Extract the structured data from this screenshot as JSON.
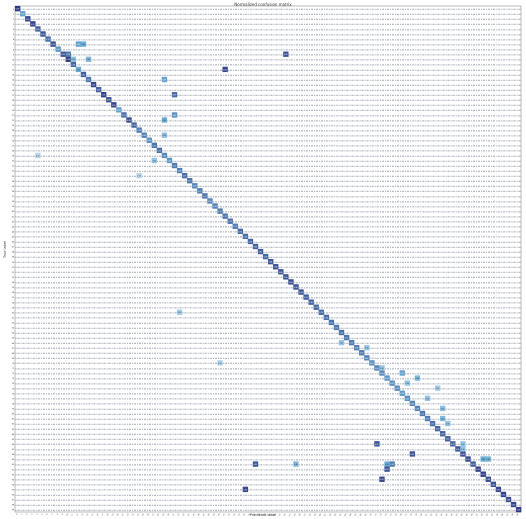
{
  "chart_data": {
    "type": "heatmap",
    "title": "Normalized confusion matrix",
    "xlabel": "Predicted label",
    "ylabel": "True label",
    "n_classes": 100,
    "cell_text": "0.00",
    "xlim": [
      0,
      99
    ],
    "ylim": [
      0,
      99
    ],
    "value_range": [
      0,
      1
    ],
    "colormap": "Blues",
    "colors": {
      "low": "#dbe9f6",
      "mid": "#6aaed6",
      "high": "#2a2f7a",
      "grid_text": "#4a5a72"
    },
    "diagonal": [
      0.95,
      0.55,
      0.9,
      0.92,
      0.8,
      0.85,
      0.75,
      0.88,
      0.6,
      0.85,
      0.95,
      0.78,
      0.5,
      0.82,
      0.72,
      0.9,
      0.8,
      0.93,
      0.85,
      0.9,
      0.55,
      0.75,
      0.88,
      0.78,
      0.7,
      0.68,
      0.62,
      0.72,
      0.75,
      0.65,
      0.6,
      0.7,
      0.68,
      0.75,
      0.72,
      0.66,
      0.7,
      0.74,
      0.66,
      0.68,
      0.7,
      0.72,
      0.74,
      0.7,
      0.76,
      0.74,
      0.78,
      0.8,
      0.82,
      0.78,
      0.84,
      0.86,
      0.84,
      0.86,
      0.88,
      0.86,
      0.84,
      0.82,
      0.8,
      0.78,
      0.76,
      0.74,
      0.72,
      0.7,
      0.74,
      0.72,
      0.7,
      0.68,
      0.7,
      0.66,
      0.62,
      0.66,
      0.64,
      0.6,
      0.62,
      0.64,
      0.58,
      0.62,
      0.66,
      0.68,
      0.72,
      0.7,
      0.75,
      0.78,
      0.8,
      0.82,
      0.78,
      0.85,
      0.88,
      0.9,
      0.82,
      0.92,
      0.95,
      0.88,
      0.85,
      0.9,
      0.92,
      0.88,
      0.9,
      0.95
    ],
    "off_diagonal": [
      {
        "row": 7,
        "col": 12,
        "value": 0.55
      },
      {
        "row": 7,
        "col": 13,
        "value": 0.5
      },
      {
        "row": 10,
        "col": 11,
        "value": 0.35
      },
      {
        "row": 10,
        "col": 14,
        "value": 0.4
      },
      {
        "row": 9,
        "col": 10,
        "value": 0.7
      },
      {
        "row": 9,
        "col": 53,
        "value": 0.85
      },
      {
        "row": 12,
        "col": 41,
        "value": 0.9
      },
      {
        "row": 14,
        "col": 29,
        "value": 0.55
      },
      {
        "row": 17,
        "col": 31,
        "value": 0.75
      },
      {
        "row": 21,
        "col": 31,
        "value": 0.6
      },
      {
        "row": 22,
        "col": 29,
        "value": 0.5
      },
      {
        "row": 25,
        "col": 29,
        "value": 0.35
      },
      {
        "row": 29,
        "col": 4,
        "value": 0.15
      },
      {
        "row": 30,
        "col": 27,
        "value": 0.3
      },
      {
        "row": 33,
        "col": 24,
        "value": 0.15
      },
      {
        "row": 60,
        "col": 32,
        "value": 0.25
      },
      {
        "row": 66,
        "col": 64,
        "value": 0.3
      },
      {
        "row": 67,
        "col": 69,
        "value": 0.3
      },
      {
        "row": 70,
        "col": 40,
        "value": 0.2
      },
      {
        "row": 71,
        "col": 72,
        "value": 0.3
      },
      {
        "row": 72,
        "col": 76,
        "value": 0.55
      },
      {
        "row": 73,
        "col": 79,
        "value": 0.4
      },
      {
        "row": 74,
        "col": 77,
        "value": 0.3
      },
      {
        "row": 75,
        "col": 83,
        "value": 0.25
      },
      {
        "row": 77,
        "col": 81,
        "value": 0.3
      },
      {
        "row": 79,
        "col": 84,
        "value": 0.35
      },
      {
        "row": 81,
        "col": 84,
        "value": 0.4
      },
      {
        "row": 82,
        "col": 85,
        "value": 0.3
      },
      {
        "row": 86,
        "col": 88,
        "value": 0.3
      },
      {
        "row": 86,
        "col": 71,
        "value": 0.85
      },
      {
        "row": 87,
        "col": 88,
        "value": 0.3
      },
      {
        "row": 88,
        "col": 78,
        "value": 0.85
      },
      {
        "row": 89,
        "col": 92,
        "value": 0.5
      },
      {
        "row": 89,
        "col": 93,
        "value": 0.45
      },
      {
        "row": 90,
        "col": 47,
        "value": 0.85
      },
      {
        "row": 90,
        "col": 55,
        "value": 0.4
      },
      {
        "row": 90,
        "col": 74,
        "value": 0.7
      },
      {
        "row": 90,
        "col": 73,
        "value": 0.5
      },
      {
        "row": 91,
        "col": 73,
        "value": 0.85
      },
      {
        "row": 93,
        "col": 72,
        "value": 0.9
      },
      {
        "row": 95,
        "col": 45,
        "value": 0.9
      }
    ]
  }
}
